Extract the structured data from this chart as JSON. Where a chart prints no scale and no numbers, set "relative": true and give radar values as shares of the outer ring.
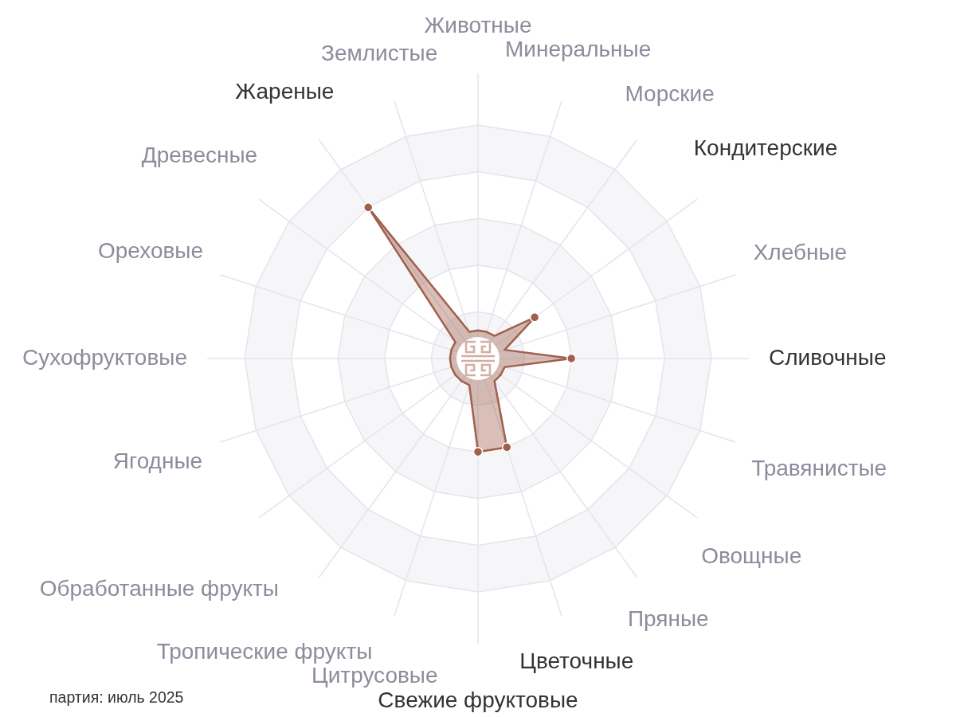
{
  "chart_data": {
    "type": "radar",
    "relative": true,
    "categories": [
      "Животные",
      "Минеральные",
      "Морские",
      "Кондитерские",
      "Хлебные",
      "Сливочные",
      "Травянистые",
      "Овощные",
      "Пряные",
      "Цветочные",
      "Свежие фруктовые",
      "Цитрусовые",
      "Тропические фрукты",
      "Обработанные фрукты",
      "Ягодные",
      "Сухофруктовые",
      "Ореховые",
      "Древесные",
      "Жареные",
      "Землистые"
    ],
    "series": [
      {
        "color": "#a0604c",
        "values": [
          0.12,
          0.12,
          0.12,
          0.3,
          0.12,
          0.4,
          0.12,
          0.12,
          0.12,
          0.4,
          0.4,
          0.12,
          0.12,
          0.12,
          0.12,
          0.12,
          0.12,
          0.12,
          0.8,
          0.12
        ]
      }
    ],
    "grid": true,
    "marker": "circle",
    "annotations": [
      "партия: июль 2025"
    ]
  }
}
